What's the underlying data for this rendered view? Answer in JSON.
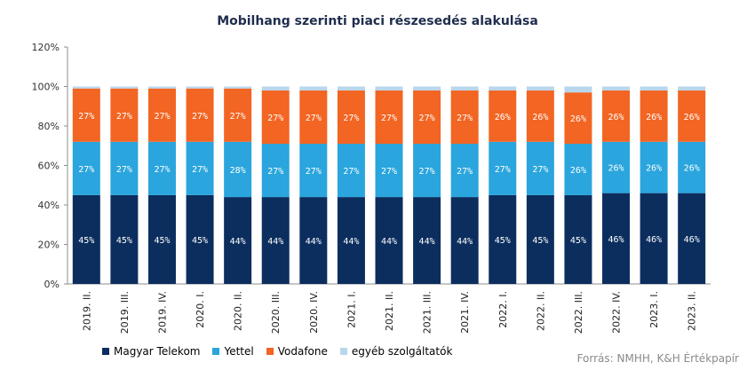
{
  "chart_data": {
    "type": "bar",
    "stacked": true,
    "title": "Mobilhang szerinti piaci részesedés alakulása",
    "xlabel": "",
    "ylabel": "",
    "ylim": [
      0,
      120
    ],
    "yticks": [
      "0%",
      "20%",
      "40%",
      "60%",
      "80%",
      "100%",
      "120%"
    ],
    "grid": false,
    "legend_position": "bottom",
    "categories": [
      "2019. II.",
      "2019. III.",
      "2019. IV.",
      "2020. I.",
      "2020. II.",
      "2020. III.",
      "2020. IV.",
      "2021. I.",
      "2021. II.",
      "2021. III.",
      "2021. IV.",
      "2022. I.",
      "2022. II.",
      "2022. III.",
      "2022. IV.",
      "2023. I.",
      "2023. II."
    ],
    "series": [
      {
        "name": "Magyar Telekom",
        "color": "#0b2e5e",
        "values": [
          45,
          45,
          45,
          45,
          44,
          44,
          44,
          44,
          44,
          44,
          44,
          45,
          45,
          45,
          46,
          46,
          46
        ],
        "labels": [
          "45%",
          "45%",
          "45%",
          "45%",
          "44%",
          "44%",
          "44%",
          "44%",
          "44%",
          "44%",
          "44%",
          "45%",
          "45%",
          "45%",
          "46%",
          "46%",
          "46%"
        ]
      },
      {
        "name": "Yettel",
        "color": "#2aa5dd",
        "values": [
          27,
          27,
          27,
          27,
          28,
          27,
          27,
          27,
          27,
          27,
          27,
          27,
          27,
          26,
          26,
          26,
          26
        ],
        "labels": [
          "27%",
          "27%",
          "27%",
          "27%",
          "28%",
          "27%",
          "27%",
          "27%",
          "27%",
          "27%",
          "27%",
          "27%",
          "27%",
          "26%",
          "26%",
          "26%",
          "26%"
        ]
      },
      {
        "name": "Vodafone",
        "color": "#f26522",
        "values": [
          27,
          27,
          27,
          27,
          27,
          27,
          27,
          27,
          27,
          27,
          27,
          26,
          26,
          26,
          26,
          26,
          26
        ],
        "labels": [
          "27%",
          "27%",
          "27%",
          "27%",
          "27%",
          "27%",
          "27%",
          "27%",
          "27%",
          "27%",
          "27%",
          "26%",
          "26%",
          "26%",
          "26%",
          "26%",
          "26%"
        ]
      },
      {
        "name": "egyéb szolgáltatók",
        "color": "#b9d7ec",
        "values": [
          1,
          1,
          1,
          1,
          1,
          2,
          2,
          2,
          2,
          2,
          2,
          2,
          2,
          3,
          2,
          2,
          2
        ]
      }
    ],
    "source": "Forrás: NMHH, K&H Értékpapír"
  }
}
